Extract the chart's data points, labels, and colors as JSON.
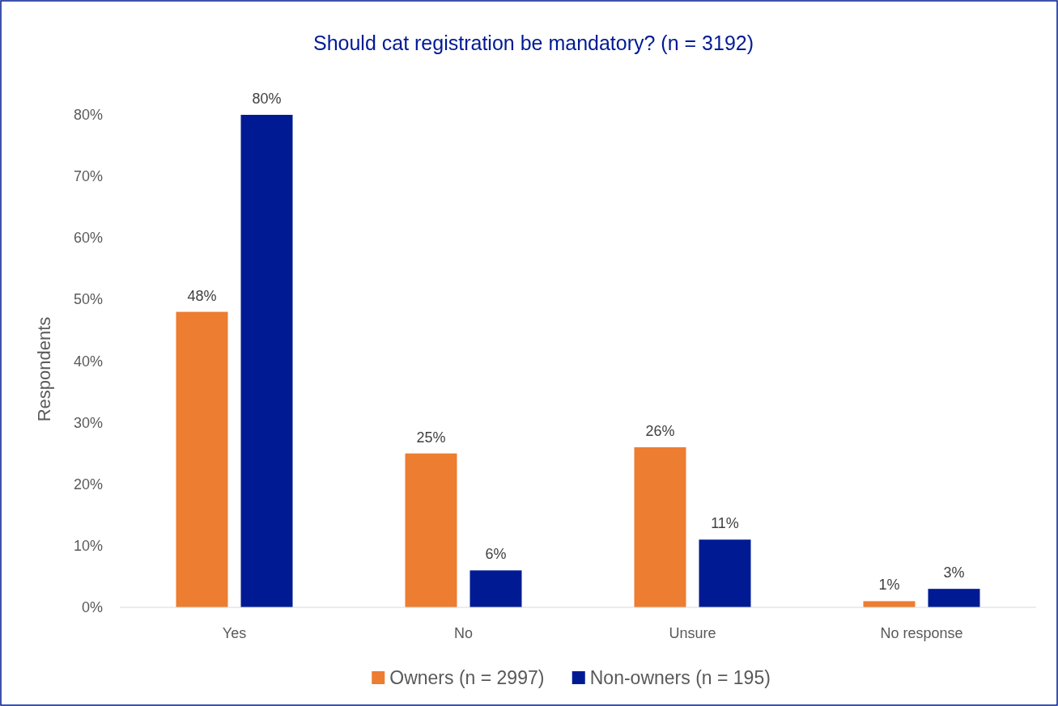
{
  "chart_data": {
    "type": "bar",
    "title": "Should cat registration be mandatory? (n = 3192)",
    "ylabel": "Respondents",
    "categories": [
      "Yes",
      "No",
      "Unsure",
      "No response"
    ],
    "series": [
      {
        "name": "Owners (n = 2997)",
        "color": "#ed7d31",
        "values": [
          48,
          25,
          26,
          1
        ],
        "value_labels": [
          "48%",
          "25%",
          "26%",
          "1%"
        ]
      },
      {
        "name": "Non-owners (n = 195)",
        "color": "#001a94",
        "values": [
          80,
          6,
          11,
          3
        ],
        "value_labels": [
          "80%",
          "6%",
          "11%",
          "3%"
        ]
      }
    ],
    "ylim": [
      0,
      80
    ],
    "yticks": [
      {
        "value": 0,
        "label": "0%"
      },
      {
        "value": 10,
        "label": "10%"
      },
      {
        "value": 20,
        "label": "20%"
      },
      {
        "value": 30,
        "label": "30%"
      },
      {
        "value": 40,
        "label": "40%"
      },
      {
        "value": 50,
        "label": "50%"
      },
      {
        "value": 60,
        "label": "60%"
      },
      {
        "value": 70,
        "label": "70%"
      },
      {
        "value": 80,
        "label": "80%"
      }
    ],
    "legend": "bottom",
    "grid": false
  }
}
